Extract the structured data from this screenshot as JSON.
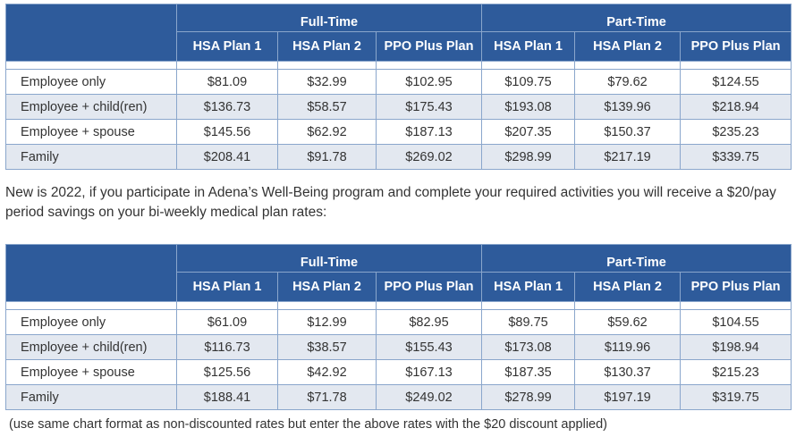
{
  "tables": [
    {
      "groups": [
        "Full-Time",
        "Part-Time"
      ],
      "plans": [
        "HSA Plan 1",
        "HSA Plan 2",
        "PPO Plus Plan",
        "HSA Plan 1",
        "HSA Plan 2",
        "PPO Plus Plan"
      ],
      "rows": [
        {
          "label": "Employee only",
          "values": [
            "$81.09",
            "$32.99",
            "$102.95",
            "$109.75",
            "$79.62",
            "$124.55"
          ]
        },
        {
          "label": "Employee + child(ren)",
          "values": [
            "$136.73",
            "$58.57",
            "$175.43",
            "$193.08",
            "$139.96",
            "$218.94"
          ]
        },
        {
          "label": "Employee + spouse",
          "values": [
            "$145.56",
            "$62.92",
            "$187.13",
            "$207.35",
            "$150.37",
            "$235.23"
          ]
        },
        {
          "label": "Family",
          "values": [
            "$208.41",
            "$91.78",
            "$269.02",
            "$298.99",
            "$217.19",
            "$339.75"
          ]
        }
      ]
    },
    {
      "groups": [
        "Full-Time",
        "Part-Time"
      ],
      "plans": [
        "HSA Plan 1",
        "HSA Plan 2",
        "PPO Plus Plan",
        "HSA Plan 1",
        "HSA Plan 2",
        "PPO Plus Plan"
      ],
      "rows": [
        {
          "label": "Employee only",
          "values": [
            "$61.09",
            "$12.99",
            "$82.95",
            "$89.75",
            "$59.62",
            "$104.55"
          ]
        },
        {
          "label": "Employee + child(ren)",
          "values": [
            "$116.73",
            "$38.57",
            "$155.43",
            "$173.08",
            "$119.96",
            "$198.94"
          ]
        },
        {
          "label": "Employee + spouse",
          "values": [
            "$125.56",
            "$42.92",
            "$167.13",
            "$187.35",
            "$130.37",
            "$215.23"
          ]
        },
        {
          "label": "Family",
          "values": [
            "$188.41",
            "$71.78",
            "$249.02",
            "$278.99",
            "$197.19",
            "$319.75"
          ]
        }
      ]
    }
  ],
  "note": "New is 2022, if you participate in Adena’s Well-Being program and complete your required activities you will receive a $20/pay period savings on your bi-weekly medical plan rates:",
  "footnote": "(use same chart format as non-discounted rates but enter the above rates with the $20 discount applied)",
  "colors": {
    "header": "#2e5b9b",
    "alt_row": "#e3e8f0",
    "text": "#333333"
  }
}
